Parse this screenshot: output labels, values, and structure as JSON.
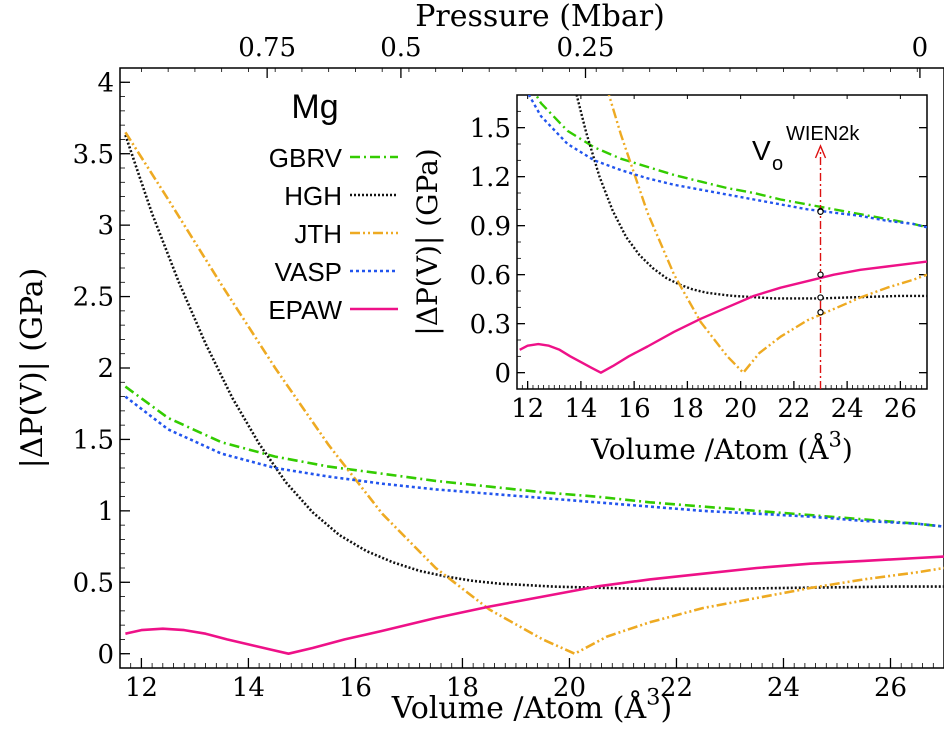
{
  "chart_data": [
    {
      "type": "line",
      "title": "",
      "xlabel": "Volume /Atom (Å3)",
      "xlabel_main": "Volume /Atom (Å",
      "xlabel_sup": "3",
      "xlabel_close": ")",
      "ylabel": "|ΔP(V)| (GPa)",
      "top_axis_label": "Pressure (Mbar)",
      "top_ticks": [
        {
          "label": "0.75",
          "x": 14.35
        },
        {
          "label": "0.5",
          "x": 16.85
        },
        {
          "label": "0.25",
          "x": 20.3
        },
        {
          "label": "0",
          "x": 26.55
        }
      ],
      "xlim": [
        11.6,
        27.0
      ],
      "ylim": [
        -0.1,
        4.1
      ],
      "x_ticks": [
        12,
        14,
        16,
        18,
        20,
        22,
        24,
        26
      ],
      "y_ticks": [
        0,
        0.5,
        1,
        1.5,
        2,
        2.5,
        3,
        3.5,
        4
      ],
      "y_tick_labels": [
        "0",
        "0.5",
        "1",
        "1.5",
        "2",
        "2.5",
        "3",
        "3.5",
        "4"
      ],
      "legend_title": "Mg",
      "legend_position": "upper-left",
      "series": [
        {
          "name": "GBRV",
          "color": "#33cc00",
          "dash": "10,4,2,4",
          "x": [
            11.7,
            12.5,
            13.5,
            14.5,
            15.5,
            16.5,
            17.5,
            18.5,
            19.5,
            20.5,
            21.5,
            22.5,
            23.5,
            24.5,
            25.5,
            26.5,
            27.0
          ],
          "y": [
            1.87,
            1.65,
            1.48,
            1.38,
            1.31,
            1.26,
            1.21,
            1.17,
            1.13,
            1.1,
            1.06,
            1.03,
            1.0,
            0.97,
            0.94,
            0.91,
            0.89
          ]
        },
        {
          "name": "HGH",
          "color": "#111111",
          "dash": "2,2",
          "x": [
            11.7,
            12.2,
            12.7,
            13.2,
            13.7,
            14.2,
            14.7,
            15.2,
            15.7,
            16.2,
            16.7,
            17.2,
            17.7,
            18.2,
            18.7,
            19.2,
            19.7,
            20.2,
            20.7,
            21.2,
            22,
            23,
            24,
            25,
            26,
            27
          ],
          "y": [
            3.63,
            3.08,
            2.6,
            2.17,
            1.79,
            1.47,
            1.2,
            0.99,
            0.83,
            0.72,
            0.64,
            0.58,
            0.54,
            0.51,
            0.49,
            0.48,
            0.47,
            0.465,
            0.46,
            0.455,
            0.455,
            0.455,
            0.46,
            0.465,
            0.47,
            0.47
          ]
        },
        {
          "name": "JTH",
          "color": "#eeaa22",
          "dash": "10,3,2,3,2,3",
          "x": [
            11.7,
            12.5,
            13.5,
            14.5,
            15.5,
            16.5,
            17.5,
            18.5,
            19.5,
            20.1,
            20.7,
            21.5,
            22.5,
            23.5,
            24.5,
            25.5,
            26.5,
            27.0
          ],
          "y": [
            3.65,
            3.18,
            2.58,
            2.0,
            1.46,
            0.98,
            0.6,
            0.31,
            0.1,
            0.0,
            0.12,
            0.22,
            0.32,
            0.39,
            0.46,
            0.52,
            0.57,
            0.6
          ]
        },
        {
          "name": "VASP",
          "color": "#2255ee",
          "dash": "3,3",
          "x": [
            11.7,
            12.5,
            13.5,
            14.5,
            15.5,
            16.5,
            17.5,
            18.5,
            19.5,
            20.5,
            21.5,
            22.5,
            23.5,
            24.5,
            25.5,
            26.5,
            27.0
          ],
          "y": [
            1.8,
            1.57,
            1.4,
            1.3,
            1.24,
            1.19,
            1.15,
            1.12,
            1.09,
            1.06,
            1.03,
            1.0,
            0.98,
            0.96,
            0.93,
            0.91,
            0.89
          ]
        },
        {
          "name": "EPAW",
          "color": "#ee1188",
          "dash": "",
          "x": [
            11.7,
            12.0,
            12.4,
            12.8,
            13.2,
            13.6,
            14.0,
            14.4,
            14.75,
            15.2,
            15.8,
            16.5,
            17.5,
            18.5,
            19.5,
            20.5,
            21.5,
            22.5,
            23.5,
            24.5,
            25.5,
            26.5,
            27.0
          ],
          "y": [
            0.14,
            0.165,
            0.175,
            0.165,
            0.14,
            0.1,
            0.065,
            0.03,
            0.0,
            0.04,
            0.1,
            0.16,
            0.25,
            0.33,
            0.4,
            0.47,
            0.52,
            0.56,
            0.6,
            0.63,
            0.65,
            0.67,
            0.68
          ]
        }
      ]
    },
    {
      "type": "line",
      "title": "",
      "xlabel": "Volume /Atom (Å3)",
      "xlabel_main": "Volume /Atom (Å",
      "xlabel_sup": "3",
      "xlabel_close": ")",
      "ylabel": "|ΔP(V)| (GPa)",
      "xlim": [
        11.6,
        27.0
      ],
      "ylim": [
        -0.1,
        1.7
      ],
      "x_ticks": [
        12,
        14,
        16,
        18,
        20,
        22,
        24,
        26
      ],
      "y_ticks": [
        0,
        0.3,
        0.6,
        0.9,
        1.2,
        1.5
      ],
      "y_tick_labels": [
        "0",
        "0.3",
        "0.6",
        "0.9",
        "1.2",
        "1.5"
      ],
      "annotation": {
        "main": "V",
        "sub": "o",
        "sup": "WIEN2k",
        "x": 23.0
      },
      "markers": [
        {
          "series": "GBRV",
          "x": 23.0,
          "y": 0.99
        },
        {
          "series": "VASP",
          "x": 23.0,
          "y": 0.985
        },
        {
          "series": "EPAW",
          "x": 23.0,
          "y": 0.6
        },
        {
          "series": "HGH",
          "x": 23.0,
          "y": 0.46
        },
        {
          "series": "JTH",
          "x": 23.0,
          "y": 0.37
        }
      ]
    }
  ]
}
